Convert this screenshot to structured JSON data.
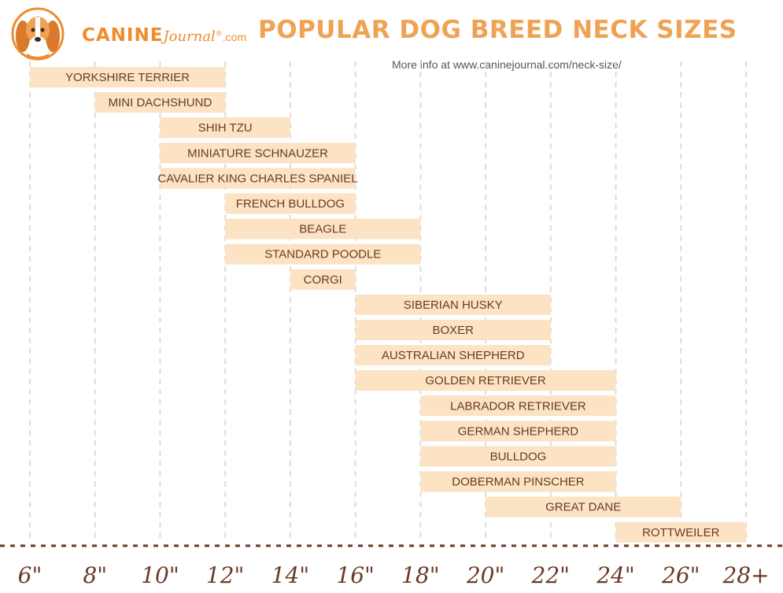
{
  "header": {
    "logo": {
      "canine": "CANINE",
      "journal": "Journal",
      "reg": "®",
      "com": ".com"
    },
    "title": "POPULAR DOG BREED NECK SIZES",
    "subtitle": "More info at www.caninejournal.com/neck-size/"
  },
  "colors": {
    "bar": "#fbe3c3",
    "bar_text": "#6b3a26",
    "title": "#f0a254",
    "grid": "#dcdcdc",
    "axis": "#6b3a26"
  },
  "chart_data": {
    "type": "bar",
    "orientation": "horizontal-range",
    "x_ticks": [
      "6\"",
      "8\"",
      "10\"",
      "12\"",
      "14\"",
      "16\"",
      "18\"",
      "20\"",
      "22\"",
      "24\"",
      "26\"",
      "28+"
    ],
    "x_tick_values": [
      6,
      8,
      10,
      12,
      14,
      16,
      18,
      20,
      22,
      24,
      26,
      28
    ],
    "xlim": [
      6,
      28
    ],
    "grid": true,
    "series": [
      {
        "label": "YORKSHIRE TERRIER",
        "start": 6,
        "end": 12
      },
      {
        "label": "MINI DACHSHUND",
        "start": 8,
        "end": 12
      },
      {
        "label": "SHIH TZU",
        "start": 10,
        "end": 14
      },
      {
        "label": "MINIATURE SCHNAUZER",
        "start": 10,
        "end": 16
      },
      {
        "label": "CAVALIER KING CHARLES SPANIEL",
        "start": 10,
        "end": 16
      },
      {
        "label": "FRENCH BULLDOG",
        "start": 12,
        "end": 16
      },
      {
        "label": "BEAGLE",
        "start": 12,
        "end": 18
      },
      {
        "label": "STANDARD POODLE",
        "start": 12,
        "end": 18
      },
      {
        "label": "CORGI",
        "start": 14,
        "end": 16
      },
      {
        "label": "SIBERIAN HUSKY",
        "start": 16,
        "end": 22
      },
      {
        "label": "BOXER",
        "start": 16,
        "end": 22
      },
      {
        "label": "AUSTRALIAN SHEPHERD",
        "start": 16,
        "end": 22
      },
      {
        "label": "GOLDEN RETRIEVER",
        "start": 16,
        "end": 24
      },
      {
        "label": "LABRADOR RETRIEVER",
        "start": 18,
        "end": 24
      },
      {
        "label": "GERMAN SHEPHERD",
        "start": 18,
        "end": 24
      },
      {
        "label": "BULLDOG",
        "start": 18,
        "end": 24
      },
      {
        "label": "DOBERMAN PINSCHER",
        "start": 18,
        "end": 24
      },
      {
        "label": "GREAT DANE",
        "start": 20,
        "end": 26
      },
      {
        "label": "ROTTWEILER",
        "start": 24,
        "end": 28
      }
    ]
  }
}
